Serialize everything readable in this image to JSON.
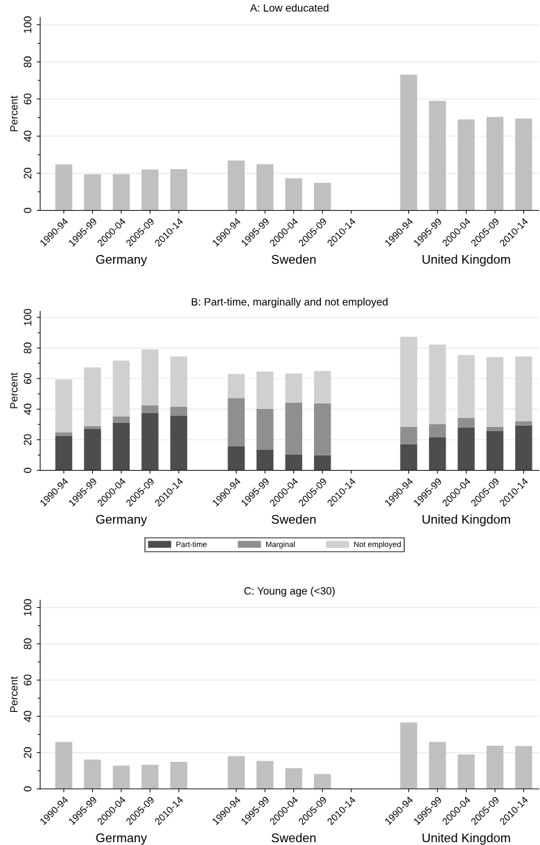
{
  "chart_data": [
    {
      "type": "bar",
      "title": "A: Low educated",
      "ylabel": "Percent",
      "categories": [
        "1990-94",
        "1995-99",
        "2000-04",
        "2005-09",
        "2010-14",
        null,
        "1990-94",
        "1995-99",
        "2000-04",
        "2005-09",
        "2010-14",
        null,
        "1990-94",
        "1995-99",
        "2000-04",
        "2005-09",
        "2010-14"
      ],
      "series": [
        {
          "color": "#c0c0c0",
          "values": [
            24.7,
            19.4,
            19.5,
            22.0,
            22.2,
            null,
            26.9,
            24.9,
            17.3,
            14.8,
            null,
            null,
            73.1,
            59.0,
            49.0,
            50.3,
            49.5
          ]
        }
      ],
      "annotations": [
        "Germany",
        "Sweden",
        "United Kingdom"
      ],
      "ylim": [
        0,
        104
      ],
      "yticks": [
        0,
        {
          "value": 10,
          "label": null
        },
        20,
        {
          "value": 30,
          "label": null
        },
        40,
        {
          "value": 50,
          "label": null
        },
        60,
        {
          "value": 70,
          "label": null
        },
        80,
        {
          "value": 90,
          "label": null
        },
        100
      ],
      "grid": "y"
    },
    {
      "type": "bar",
      "title": "B: Part-time, marginally and not employed",
      "ylabel": "Percent",
      "stacked": true,
      "legend": "bottom",
      "categories": [
        "1990-94",
        "1995-99",
        "2000-04",
        "2005-09",
        "2010-14",
        null,
        "1990-94",
        "1995-99",
        "2000-04",
        "2005-09",
        "2010-14",
        null,
        "1990-94",
        "1995-99",
        "2000-04",
        "2005-09",
        "2010-14"
      ],
      "series": [
        {
          "name": "Part-time",
          "color": "#4d4d4d",
          "values": [
            22.7,
            27.0,
            31.3,
            37.4,
            35.6,
            null,
            15.6,
            13.4,
            10.2,
            10.0,
            null,
            null,
            17.2,
            21.5,
            27.9,
            25.6,
            29.3
          ]
        },
        {
          "name": "Marginal",
          "color": "#8f8f8f",
          "values": [
            2.2,
            2.0,
            4.1,
            5.2,
            6.1,
            null,
            31.6,
            26.7,
            34.0,
            33.8,
            null,
            null,
            11.4,
            8.7,
            6.3,
            3.0,
            2.9
          ]
        },
        {
          "name": "Not employed",
          "color": "#d0d0d0",
          "values": [
            34.5,
            38.3,
            36.3,
            36.5,
            32.7,
            null,
            15.8,
            24.5,
            19.1,
            21.1,
            null,
            null,
            58.7,
            52.1,
            41.1,
            45.5,
            42.2
          ]
        }
      ],
      "annotations": [
        "Germany",
        "Sweden",
        "United Kingdom"
      ],
      "ylim": [
        0,
        104
      ],
      "yticks": [
        0,
        {
          "value": 10,
          "label": null
        },
        20,
        {
          "value": 30,
          "label": null
        },
        40,
        {
          "value": 50,
          "label": null
        },
        60,
        {
          "value": 70,
          "label": null
        },
        80,
        {
          "value": 90,
          "label": null
        },
        100
      ],
      "grid": "y"
    },
    {
      "type": "bar",
      "title": "C: Young age (<30)",
      "ylabel": "Percent",
      "categories": [
        "1990-94",
        "1995-99",
        "2000-04",
        "2005-09",
        "2010-14",
        null,
        "1990-94",
        "1995-99",
        "2000-04",
        "2005-09",
        "2010-14",
        null,
        "1990-94",
        "1995-99",
        "2000-04",
        "2005-09",
        "2010-14"
      ],
      "series": [
        {
          "color": "#c0c0c0",
          "values": [
            25.9,
            16.2,
            12.8,
            13.3,
            14.9,
            null,
            18.1,
            15.4,
            11.4,
            8.2,
            null,
            null,
            36.6,
            25.9,
            19.0,
            23.8,
            23.6
          ]
        }
      ],
      "annotations": [
        "Germany",
        "Sweden",
        "United Kingdom"
      ],
      "ylim": [
        0,
        104
      ],
      "yticks": [
        0,
        {
          "value": 10,
          "label": null
        },
        20,
        {
          "value": 30,
          "label": null
        },
        40,
        {
          "value": 50,
          "label": null
        },
        60,
        {
          "value": 70,
          "label": null
        },
        80,
        {
          "value": 90,
          "label": null
        },
        100
      ],
      "grid": "y"
    }
  ]
}
